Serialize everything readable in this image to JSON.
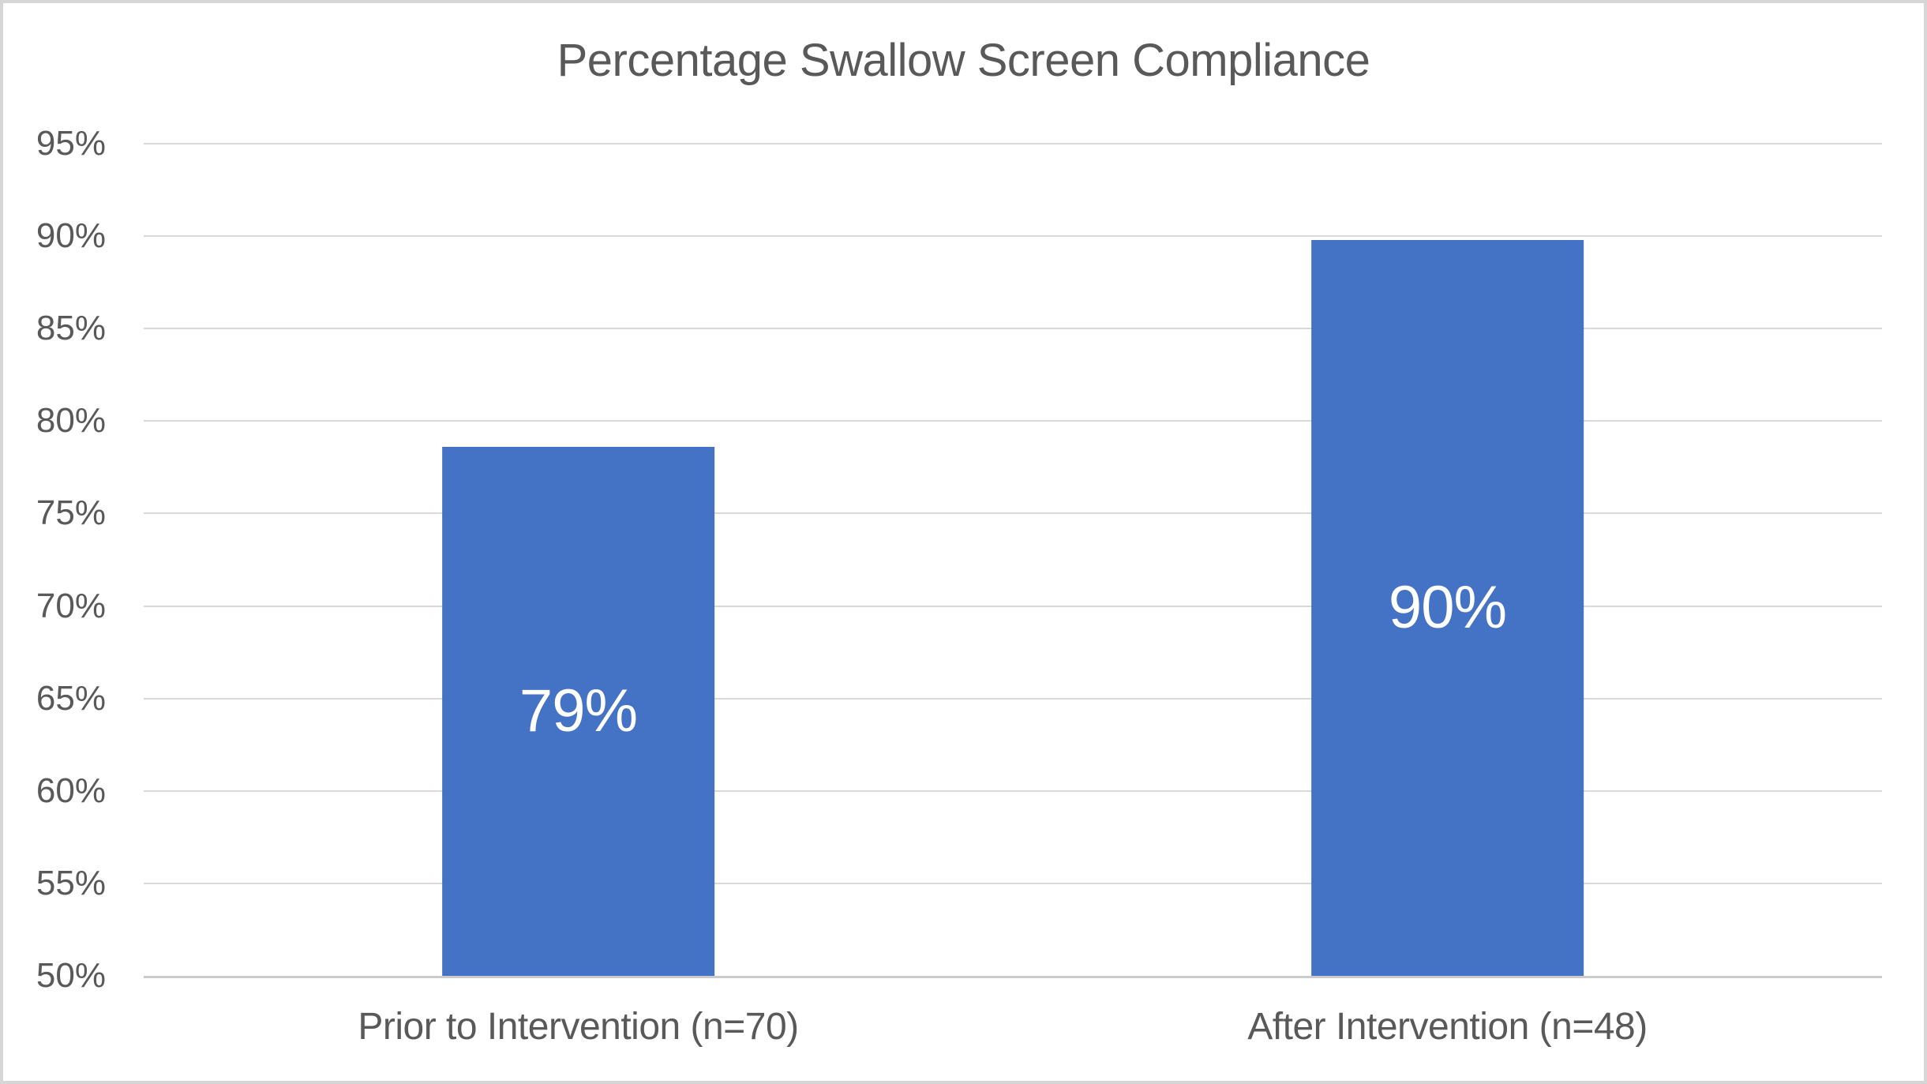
{
  "chart_data": {
    "type": "bar",
    "title": "Percentage Swallow Screen Compliance",
    "categories": [
      "Prior to Intervention (n=70)",
      "After Intervention (n=48)"
    ],
    "values": [
      78.6,
      89.8
    ],
    "value_labels": [
      "79%",
      "90%"
    ],
    "ylim": [
      50,
      95
    ],
    "ytick_step": 5,
    "ytick_labels": [
      "50%",
      "55%",
      "60%",
      "65%",
      "70%",
      "75%",
      "80%",
      "85%",
      "90%",
      "95%"
    ],
    "xlabel": "",
    "ylabel": "",
    "grid": true,
    "legend": "none",
    "colors": {
      "bar": "#4472C4",
      "bar_value_label": "#FFFFFF",
      "axis_text": "#595959",
      "title_text": "#595959",
      "gridline": "#D9D9D9",
      "axis_line": "#CBCBCB",
      "background": "#FFFFFF",
      "frame_border": "#D6D6D6"
    }
  }
}
